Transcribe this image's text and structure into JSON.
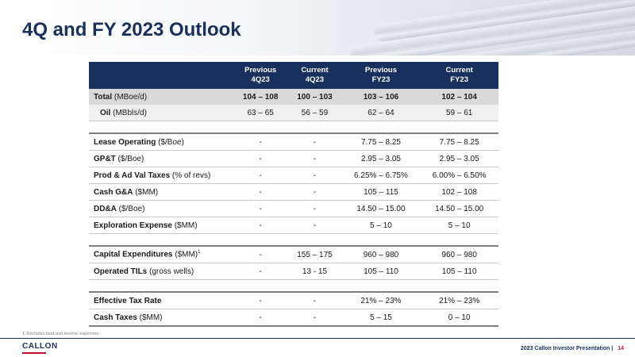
{
  "title": "4Q and FY 2023 Outlook",
  "columns": [
    {
      "line1": "Previous",
      "line2": "4Q23"
    },
    {
      "line1": "Current",
      "line2": "4Q23"
    },
    {
      "line1": "Previous",
      "line2": "FY23"
    },
    {
      "line1": "Current",
      "line2": "FY23"
    }
  ],
  "rows": {
    "total": {
      "label": "Total",
      "unit": " (MBoe/d)",
      "values": [
        "104 – 108",
        "100 – 103",
        "103 – 106",
        "102 – 104"
      ]
    },
    "oil": {
      "label": "Oil",
      "unit": " (MBbls/d)",
      "values": [
        "63 – 65",
        "56 – 59",
        "62 – 64",
        "59 – 61"
      ]
    },
    "loe": {
      "label": "Lease Operating",
      "unit": " ($/Boe)",
      "values": [
        "-",
        "-",
        "7.75 – 8.25",
        "7.75 – 8.25"
      ]
    },
    "gpt": {
      "label": "GP&T",
      "unit": " ($/Boe)",
      "values": [
        "-",
        "-",
        "2.95 – 3.05",
        "2.95 – 3.05"
      ]
    },
    "prod_tax": {
      "label": "Prod & Ad Val Taxes",
      "unit": " (% of revs)",
      "values": [
        "-",
        "-",
        "6.25% – 6.75%",
        "6.00% – 6.50%"
      ]
    },
    "cash_ga": {
      "label": "Cash G&A",
      "unit": " ($MM)",
      "values": [
        "-",
        "-",
        "105 – 115",
        "102 – 108"
      ]
    },
    "dda": {
      "label": "DD&A",
      "unit": " ($/Boe)",
      "values": [
        "-",
        "-",
        "14.50 – 15.00",
        "14.50 – 15.00"
      ]
    },
    "exploration": {
      "label": "Exploration Expense",
      "unit": " ($MM)",
      "values": [
        "-",
        "-",
        "5 – 10",
        "5 – 10"
      ]
    },
    "capex": {
      "label": "Capital Expenditures",
      "unit": " ($MM)",
      "sup": "1",
      "values": [
        "-",
        "155 – 175",
        "960 – 980",
        "960 – 980"
      ]
    },
    "tils": {
      "label": "Operated TILs",
      "unit": " (gross wells)",
      "values": [
        "-",
        "13 - 15",
        "105 – 110",
        "105 – 110"
      ]
    },
    "tax_rate": {
      "label": "Effective Tax Rate",
      "unit": "",
      "values": [
        "-",
        "-",
        "21% – 23%",
        "21% – 23%"
      ]
    },
    "cash_taxes": {
      "label": "Cash Taxes",
      "unit": " ($MM)",
      "values": [
        "-",
        "-",
        "5 – 15",
        "0 – 10"
      ]
    }
  },
  "footnote": "1.  Excludes land and seismic expenses",
  "logo": {
    "name": "CALLON"
  },
  "footer": {
    "text": "2023 Callon Investor Presentation",
    "separator": "|",
    "page": "14"
  },
  "colors": {
    "navy": "#17305e",
    "accent_red": "#c8102e",
    "total_row_bg": "#d9d9d9"
  }
}
